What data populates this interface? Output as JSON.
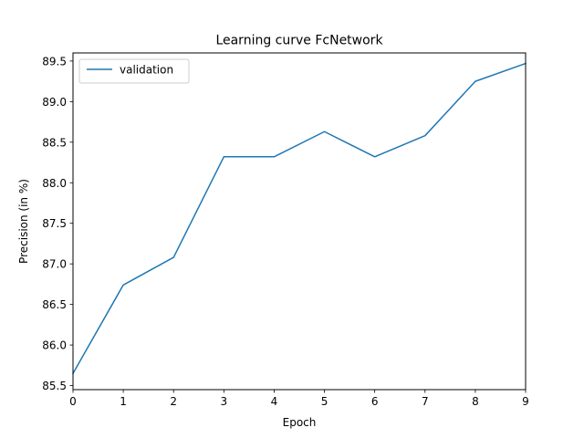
{
  "chart_data": {
    "type": "line",
    "title": "Learning curve FcNetwork",
    "xlabel": "Epoch",
    "ylabel": "Precision (in %)",
    "x": [
      0,
      1,
      2,
      3,
      4,
      5,
      6,
      7,
      8,
      9
    ],
    "series": [
      {
        "name": "validation",
        "color": "#1f77b4",
        "values": [
          85.65,
          86.74,
          87.08,
          88.32,
          88.32,
          88.63,
          88.32,
          88.58,
          89.25,
          89.47
        ]
      }
    ],
    "xlim": [
      0,
      9
    ],
    "ylim": [
      85.45,
      89.6
    ],
    "xticks": [
      "0",
      "1",
      "2",
      "3",
      "4",
      "5",
      "6",
      "7",
      "8",
      "9"
    ],
    "yticks": [
      "85.5",
      "86.0",
      "86.5",
      "87.0",
      "87.5",
      "88.0",
      "88.5",
      "89.0",
      "89.5"
    ],
    "grid": false,
    "legend": "top-left"
  }
}
